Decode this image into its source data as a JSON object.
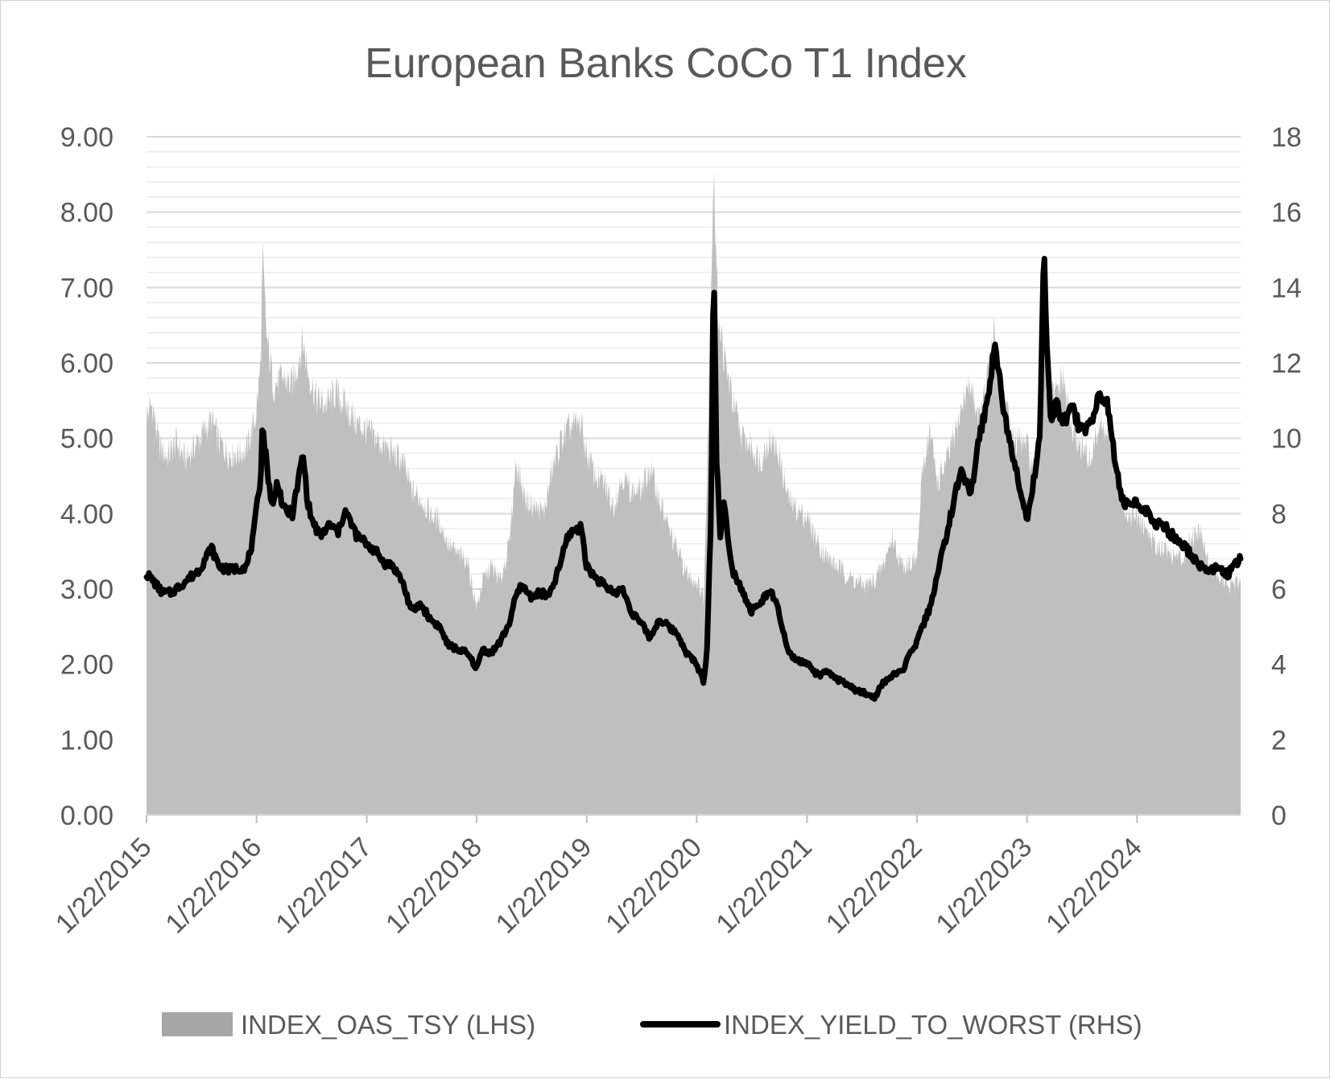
{
  "chart_data": {
    "type": "area",
    "title": "European Banks CoCo T1 Index",
    "x_tick_labels": [
      "1/22/2015",
      "1/22/2016",
      "1/22/2017",
      "1/22/2018",
      "1/22/2019",
      "1/22/2020",
      "1/22/2021",
      "1/22/2022",
      "1/22/2023",
      "1/22/2024"
    ],
    "x_range": [
      "1/22/2015",
      "12/31/2024"
    ],
    "y_left": {
      "ticks": [
        "0.00",
        "1.00",
        "2.00",
        "3.00",
        "4.00",
        "5.00",
        "6.00",
        "7.00",
        "8.00",
        "9.00"
      ],
      "range": [
        0,
        9
      ]
    },
    "y_right": {
      "ticks": [
        "0",
        "2",
        "4",
        "6",
        "8",
        "10",
        "12",
        "14",
        "16",
        "18"
      ],
      "range": [
        0,
        18
      ]
    },
    "minor_gridlines": true,
    "legend_position": "bottom",
    "series": [
      {
        "name": "INDEX_OAS_TSY (LHS)",
        "axis": "left",
        "render": "area",
        "color": "#bfbfbf",
        "points": [
          [
            "2015-01-22",
            5.3
          ],
          [
            "2015-02-10",
            5.45
          ],
          [
            "2015-03-05",
            4.9
          ],
          [
            "2015-04-01",
            4.75
          ],
          [
            "2015-05-01",
            4.95
          ],
          [
            "2015-06-01",
            4.7
          ],
          [
            "2015-07-01",
            4.9
          ],
          [
            "2015-08-01",
            5.1
          ],
          [
            "2015-08-25",
            5.25
          ],
          [
            "2015-09-20",
            4.95
          ],
          [
            "2015-10-20",
            4.8
          ],
          [
            "2015-11-20",
            4.8
          ],
          [
            "2015-12-20",
            4.85
          ],
          [
            "2016-01-20",
            5.3
          ],
          [
            "2016-02-05",
            6.0
          ],
          [
            "2016-02-11",
            7.4
          ],
          [
            "2016-02-25",
            6.3
          ],
          [
            "2016-03-20",
            5.7
          ],
          [
            "2016-04-20",
            5.8
          ],
          [
            "2016-05-20",
            5.7
          ],
          [
            "2016-06-24",
            6.3
          ],
          [
            "2016-07-10",
            5.9
          ],
          [
            "2016-08-10",
            5.5
          ],
          [
            "2016-09-10",
            5.45
          ],
          [
            "2016-10-10",
            5.6
          ],
          [
            "2016-11-10",
            5.45
          ],
          [
            "2016-12-20",
            5.2
          ],
          [
            "2017-01-22",
            5.1
          ],
          [
            "2017-02-20",
            5.0
          ],
          [
            "2017-03-20",
            4.9
          ],
          [
            "2017-04-20",
            4.8
          ],
          [
            "2017-05-20",
            4.7
          ],
          [
            "2017-06-20",
            4.3
          ],
          [
            "2017-07-20",
            4.2
          ],
          [
            "2017-08-20",
            4.0
          ],
          [
            "2017-09-20",
            3.9
          ],
          [
            "2017-10-20",
            3.6
          ],
          [
            "2017-11-20",
            3.45
          ],
          [
            "2017-12-20",
            3.4
          ],
          [
            "2018-01-22",
            2.75
          ],
          [
            "2018-02-10",
            3.1
          ],
          [
            "2018-03-10",
            3.3
          ],
          [
            "2018-04-10",
            3.1
          ],
          [
            "2018-05-10",
            3.6
          ],
          [
            "2018-06-01",
            4.7
          ],
          [
            "2018-07-01",
            4.2
          ],
          [
            "2018-08-01",
            4.1
          ],
          [
            "2018-09-01",
            4.0
          ],
          [
            "2018-10-01",
            4.6
          ],
          [
            "2018-11-01",
            5.0
          ],
          [
            "2018-12-01",
            5.15
          ],
          [
            "2019-01-03",
            5.2
          ],
          [
            "2019-01-22",
            4.8
          ],
          [
            "2019-02-20",
            4.5
          ],
          [
            "2019-03-20",
            4.4
          ],
          [
            "2019-04-20",
            4.1
          ],
          [
            "2019-05-20",
            4.5
          ],
          [
            "2019-06-20",
            4.3
          ],
          [
            "2019-07-20",
            4.3
          ],
          [
            "2019-08-20",
            4.6
          ],
          [
            "2019-09-20",
            4.2
          ],
          [
            "2019-10-20",
            3.8
          ],
          [
            "2019-11-20",
            3.5
          ],
          [
            "2019-12-20",
            3.2
          ],
          [
            "2020-01-22",
            3.1
          ],
          [
            "2020-02-15",
            2.9
          ],
          [
            "2020-03-01",
            5.5
          ],
          [
            "2020-03-18",
            8.55
          ],
          [
            "2020-03-31",
            6.8
          ],
          [
            "2020-04-20",
            6.1
          ],
          [
            "2020-05-20",
            5.5
          ],
          [
            "2020-06-20",
            5.0
          ],
          [
            "2020-07-20",
            4.9
          ],
          [
            "2020-08-20",
            4.7
          ],
          [
            "2020-09-20",
            5.0
          ],
          [
            "2020-10-20",
            4.8
          ],
          [
            "2020-11-20",
            4.2
          ],
          [
            "2020-12-20",
            4.05
          ],
          [
            "2021-01-22",
            3.95
          ],
          [
            "2021-03-01",
            3.6
          ],
          [
            "2021-04-01",
            3.4
          ],
          [
            "2021-05-01",
            3.3
          ],
          [
            "2021-06-01",
            3.2
          ],
          [
            "2021-07-01",
            3.1
          ],
          [
            "2021-08-01",
            3.05
          ],
          [
            "2021-09-01",
            3.1
          ],
          [
            "2021-10-01",
            3.3
          ],
          [
            "2021-11-01",
            3.7
          ],
          [
            "2021-12-01",
            3.3
          ],
          [
            "2022-01-22",
            3.4
          ],
          [
            "2022-02-10",
            4.6
          ],
          [
            "2022-03-05",
            5.1
          ],
          [
            "2022-04-01",
            4.4
          ],
          [
            "2022-05-01",
            4.7
          ],
          [
            "2022-06-01",
            5.1
          ],
          [
            "2022-07-01",
            5.6
          ],
          [
            "2022-07-20",
            5.7
          ],
          [
            "2022-08-20",
            5.2
          ],
          [
            "2022-09-20",
            6.0
          ],
          [
            "2022-10-05",
            6.4
          ],
          [
            "2022-11-01",
            5.7
          ],
          [
            "2022-12-01",
            5.0
          ],
          [
            "2023-01-22",
            4.9
          ],
          [
            "2023-02-20",
            4.5
          ],
          [
            "2023-03-15",
            6.0
          ],
          [
            "2023-03-24",
            6.2
          ],
          [
            "2023-04-20",
            5.5
          ],
          [
            "2023-05-20",
            5.8
          ],
          [
            "2023-06-20",
            5.1
          ],
          [
            "2023-07-20",
            4.9
          ],
          [
            "2023-08-20",
            4.7
          ],
          [
            "2023-09-20",
            5.2
          ],
          [
            "2023-10-20",
            5.0
          ],
          [
            "2023-11-20",
            4.4
          ],
          [
            "2023-12-20",
            4.0
          ],
          [
            "2024-01-22",
            3.95
          ],
          [
            "2024-02-20",
            3.8
          ],
          [
            "2024-03-20",
            3.6
          ],
          [
            "2024-04-20",
            3.55
          ],
          [
            "2024-05-20",
            3.45
          ],
          [
            "2024-06-20",
            3.4
          ],
          [
            "2024-07-20",
            3.7
          ],
          [
            "2024-08-20",
            3.8
          ],
          [
            "2024-09-20",
            3.3
          ],
          [
            "2024-10-20",
            3.15
          ],
          [
            "2024-11-20",
            3.05
          ],
          [
            "2024-12-31",
            3.05
          ]
        ]
      },
      {
        "name": "INDEX_YIELD_TO_WORST (RHS)",
        "axis": "right",
        "render": "line",
        "color": "#000000",
        "points": [
          [
            "2015-01-22",
            6.4
          ],
          [
            "2015-02-15",
            6.2
          ],
          [
            "2015-03-15",
            5.9
          ],
          [
            "2015-04-15",
            5.9
          ],
          [
            "2015-05-15",
            6.1
          ],
          [
            "2015-06-15",
            6.3
          ],
          [
            "2015-07-15",
            6.5
          ],
          [
            "2015-08-25",
            7.1
          ],
          [
            "2015-09-20",
            6.6
          ],
          [
            "2015-10-20",
            6.5
          ],
          [
            "2015-11-20",
            6.55
          ],
          [
            "2015-12-20",
            6.6
          ],
          [
            "2016-01-10",
            7.3
          ],
          [
            "2016-02-05",
            9.0
          ],
          [
            "2016-02-11",
            10.4
          ],
          [
            "2016-02-25",
            9.3
          ],
          [
            "2016-03-15",
            8.1
          ],
          [
            "2016-04-01",
            8.9
          ],
          [
            "2016-04-20",
            8.1
          ],
          [
            "2016-05-20",
            8.0
          ],
          [
            "2016-06-01",
            8.5
          ],
          [
            "2016-06-24",
            9.6
          ],
          [
            "2016-07-10",
            8.3
          ],
          [
            "2016-07-25",
            7.8
          ],
          [
            "2016-08-20",
            7.4
          ],
          [
            "2016-09-20",
            7.7
          ],
          [
            "2016-10-20",
            7.5
          ],
          [
            "2016-11-10",
            8.1
          ],
          [
            "2016-12-20",
            7.4
          ],
          [
            "2017-01-22",
            7.2
          ],
          [
            "2017-02-20",
            7.0
          ],
          [
            "2017-03-20",
            6.7
          ],
          [
            "2017-04-20",
            6.6
          ],
          [
            "2017-05-20",
            6.2
          ],
          [
            "2017-06-20",
            5.4
          ],
          [
            "2017-07-20",
            5.6
          ],
          [
            "2017-08-20",
            5.2
          ],
          [
            "2017-09-20",
            5.0
          ],
          [
            "2017-10-20",
            4.5
          ],
          [
            "2017-11-20",
            4.4
          ],
          [
            "2017-12-20",
            4.3
          ],
          [
            "2018-01-22",
            3.9
          ],
          [
            "2018-02-10",
            4.4
          ],
          [
            "2018-03-10",
            4.3
          ],
          [
            "2018-04-10",
            4.6
          ],
          [
            "2018-05-10",
            5.1
          ],
          [
            "2018-06-01",
            5.8
          ],
          [
            "2018-06-20",
            6.1
          ],
          [
            "2018-07-20",
            5.8
          ],
          [
            "2018-08-20",
            5.9
          ],
          [
            "2018-09-20",
            5.8
          ],
          [
            "2018-10-20",
            6.5
          ],
          [
            "2018-11-20",
            7.4
          ],
          [
            "2018-12-15",
            7.6
          ],
          [
            "2019-01-05",
            7.6
          ],
          [
            "2019-01-22",
            6.6
          ],
          [
            "2019-02-20",
            6.3
          ],
          [
            "2019-03-20",
            6.1
          ],
          [
            "2019-04-20",
            5.9
          ],
          [
            "2019-05-20",
            6.0
          ],
          [
            "2019-06-20",
            5.4
          ],
          [
            "2019-07-20",
            5.1
          ],
          [
            "2019-08-20",
            4.7
          ],
          [
            "2019-09-20",
            5.2
          ],
          [
            "2019-10-20",
            5.0
          ],
          [
            "2019-11-20",
            4.8
          ],
          [
            "2019-12-20",
            4.3
          ],
          [
            "2020-01-22",
            4.0
          ],
          [
            "2020-02-15",
            3.5
          ],
          [
            "2020-02-25",
            4.5
          ],
          [
            "2020-03-10",
            8.0
          ],
          [
            "2020-03-18",
            14.9
          ],
          [
            "2020-03-28",
            9.5
          ],
          [
            "2020-04-10",
            7.3
          ],
          [
            "2020-04-20",
            8.3
          ],
          [
            "2020-05-20",
            6.5
          ],
          [
            "2020-06-20",
            6.0
          ],
          [
            "2020-07-20",
            5.4
          ],
          [
            "2020-08-20",
            5.6
          ],
          [
            "2020-09-20",
            6.0
          ],
          [
            "2020-10-20",
            5.4
          ],
          [
            "2020-11-20",
            4.3
          ],
          [
            "2020-12-20",
            4.1
          ],
          [
            "2021-01-22",
            4.0
          ],
          [
            "2021-03-01",
            3.7
          ],
          [
            "2021-04-01",
            3.8
          ],
          [
            "2021-05-01",
            3.6
          ],
          [
            "2021-06-01",
            3.5
          ],
          [
            "2021-07-01",
            3.3
          ],
          [
            "2021-08-01",
            3.25
          ],
          [
            "2021-09-01",
            3.1
          ],
          [
            "2021-10-01",
            3.5
          ],
          [
            "2021-11-01",
            3.7
          ],
          [
            "2021-12-01",
            3.8
          ],
          [
            "2022-01-22",
            4.6
          ],
          [
            "2022-02-10",
            5.0
          ],
          [
            "2022-03-05",
            5.5
          ],
          [
            "2022-04-01",
            6.4
          ],
          [
            "2022-05-01",
            7.5
          ],
          [
            "2022-06-01",
            8.6
          ],
          [
            "2022-06-20",
            9.2
          ],
          [
            "2022-07-20",
            8.5
          ],
          [
            "2022-08-20",
            10.2
          ],
          [
            "2022-09-15",
            11.0
          ],
          [
            "2022-10-05",
            12.5
          ],
          [
            "2022-10-20",
            11.8
          ],
          [
            "2022-11-10",
            10.5
          ],
          [
            "2022-12-01",
            9.8
          ],
          [
            "2023-01-10",
            8.3
          ],
          [
            "2023-01-22",
            7.8
          ],
          [
            "2023-02-20",
            9.2
          ],
          [
            "2023-03-05",
            10.0
          ],
          [
            "2023-03-20",
            15.3
          ],
          [
            "2023-03-28",
            12.5
          ],
          [
            "2023-04-10",
            10.5
          ],
          [
            "2023-05-01",
            11.0
          ],
          [
            "2023-05-20",
            10.4
          ],
          [
            "2023-06-20",
            10.8
          ],
          [
            "2023-07-20",
            10.2
          ],
          [
            "2023-08-20",
            10.4
          ],
          [
            "2023-09-20",
            11.2
          ],
          [
            "2023-10-20",
            10.8
          ],
          [
            "2023-11-10",
            9.4
          ],
          [
            "2023-12-01",
            8.4
          ],
          [
            "2023-12-20",
            8.2
          ],
          [
            "2024-01-22",
            8.3
          ],
          [
            "2024-02-20",
            8.1
          ],
          [
            "2024-03-20",
            7.7
          ],
          [
            "2024-04-20",
            7.7
          ],
          [
            "2024-05-20",
            7.4
          ],
          [
            "2024-06-20",
            7.2
          ],
          [
            "2024-07-20",
            6.9
          ],
          [
            "2024-08-20",
            6.6
          ],
          [
            "2024-09-20",
            6.5
          ],
          [
            "2024-10-20",
            6.55
          ],
          [
            "2024-11-20",
            6.4
          ],
          [
            "2024-12-31",
            6.8
          ]
        ]
      }
    ]
  }
}
